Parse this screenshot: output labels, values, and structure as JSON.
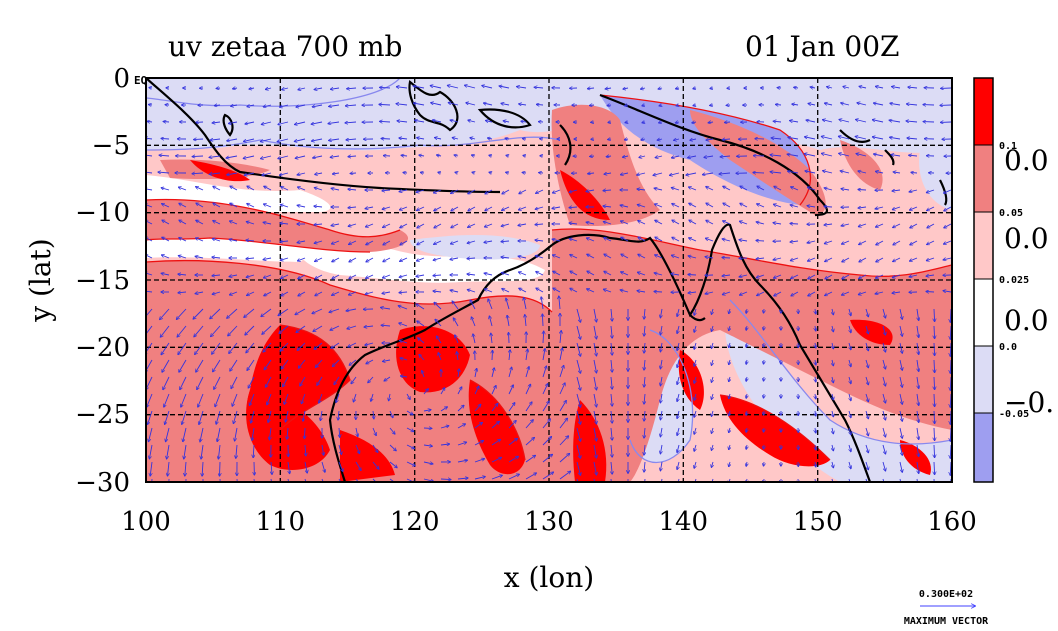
{
  "title": "uv zetaa 700 mb",
  "date": "01 Jan 00Z",
  "axes": {
    "xlabel": "x (lon)",
    "ylabel": "y (lat)",
    "xticks": [
      "100",
      "110",
      "120",
      "130",
      "140",
      "150",
      "160"
    ],
    "yticks": [
      "0",
      "−5",
      "−10",
      "−15",
      "−20",
      "−25",
      "−30"
    ],
    "xlim": [
      100,
      160
    ],
    "ylim": [
      -30,
      0
    ],
    "eq_label": "EQ",
    "grid": true
  },
  "colorbar": {
    "labels_small": [
      "0.1",
      "0.05",
      "0.025",
      "0.0",
      "-0.05"
    ],
    "labels_large": [
      "0.0",
      "0.0",
      "0.0",
      "−0."
    ],
    "colors": [
      "#ff0000",
      "#f08080",
      "#ffc8c8",
      "#ffffff",
      "#dcdcf5",
      "#9e9ef0"
    ]
  },
  "vector_legend": {
    "value": "0.300E+02",
    "label": "MAXIMUM VECTOR",
    "color": "#4040ff"
  },
  "colors": {
    "strong_positive": "#ff0000",
    "positive": "#f08080",
    "weak_positive": "#ffc8c8",
    "negative": "#dcdcf5",
    "strong_negative": "#9e9ef0",
    "contour_red": "#ee1111",
    "contour_blue": "#8888ee",
    "vector": "#3333dd",
    "coast": "#000000"
  }
}
